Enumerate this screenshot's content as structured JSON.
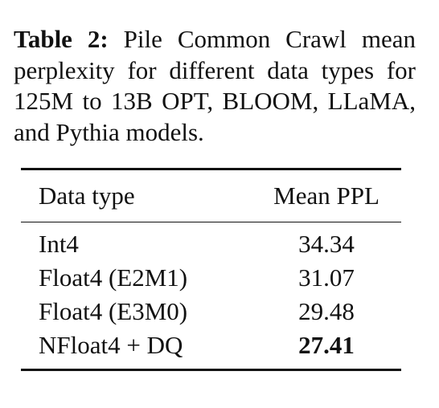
{
  "caption": {
    "label": "Table 2:",
    "text": "Pile Common Crawl mean perplexity for different data types for 125M to 13B OPT, BLOOM, LLaMA, and Pythia models."
  },
  "table": {
    "headers": [
      "Data type",
      "Mean PPL"
    ],
    "rows": [
      {
        "type": "Int4",
        "ppl": "34.34"
      },
      {
        "type": "Float4 (E2M1)",
        "ppl": "31.07"
      },
      {
        "type": "Float4 (E3M0)",
        "ppl": "29.48"
      },
      {
        "type": "NFloat4 + DQ",
        "ppl": "27.41"
      }
    ]
  }
}
